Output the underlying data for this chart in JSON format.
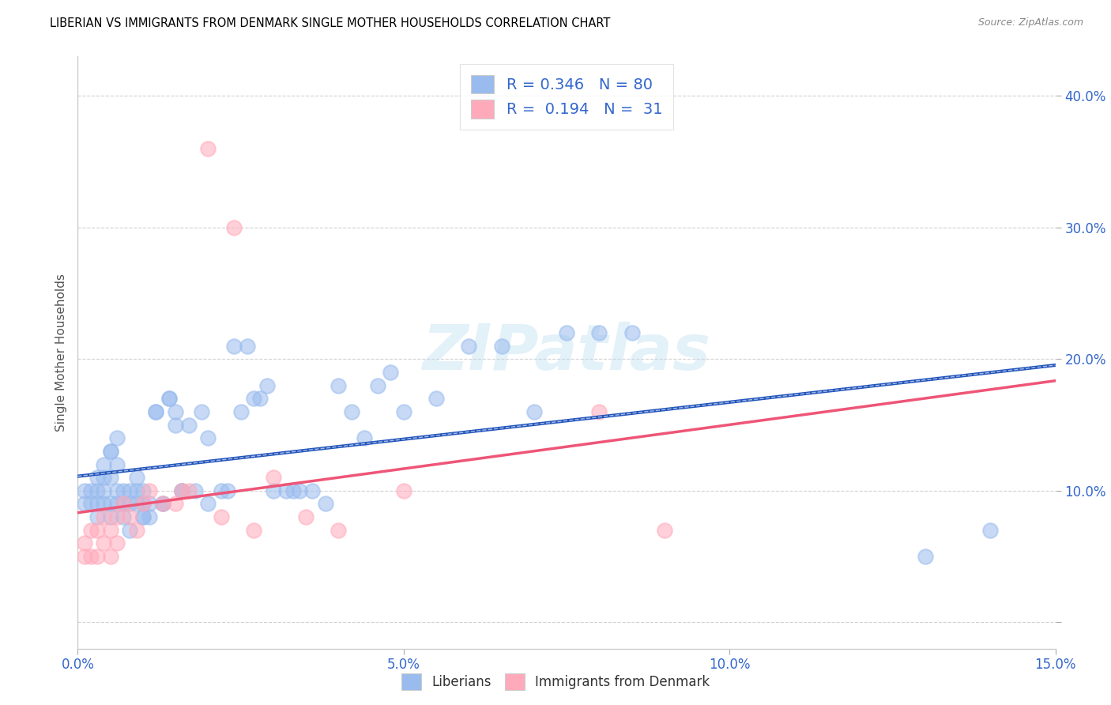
{
  "title": "LIBERIAN VS IMMIGRANTS FROM DENMARK SINGLE MOTHER HOUSEHOLDS CORRELATION CHART",
  "source": "Source: ZipAtlas.com",
  "ylabel": "Single Mother Households",
  "xlabel": "",
  "xlim": [
    0,
    0.15
  ],
  "ylim": [
    -0.02,
    0.43
  ],
  "xticks": [
    0.0,
    0.05,
    0.1,
    0.15
  ],
  "xticklabels": [
    "0.0%",
    "5.0%",
    "10.0%",
    "15.0%"
  ],
  "yticks": [
    0.0,
    0.1,
    0.2,
    0.3,
    0.4
  ],
  "yticklabels": [
    "",
    "10.0%",
    "20.0%",
    "30.0%",
    "40.0%"
  ],
  "blue_color": "#99BBEE",
  "pink_color": "#FFAABB",
  "blue_line_color": "#2255BB",
  "pink_line_color": "#EE5577",
  "R_blue": 0.346,
  "N_blue": 80,
  "R_pink": 0.194,
  "N_pink": 31,
  "legend_label_blue": "Liberians",
  "legend_label_pink": "Immigrants from Denmark",
  "watermark": "ZIPatlas",
  "blue_scatter_x": [
    0.001,
    0.001,
    0.002,
    0.002,
    0.003,
    0.003,
    0.003,
    0.003,
    0.004,
    0.004,
    0.004,
    0.004,
    0.005,
    0.005,
    0.005,
    0.005,
    0.005,
    0.006,
    0.006,
    0.006,
    0.006,
    0.007,
    0.007,
    0.007,
    0.008,
    0.008,
    0.008,
    0.009,
    0.009,
    0.009,
    0.01,
    0.01,
    0.01,
    0.01,
    0.011,
    0.011,
    0.012,
    0.012,
    0.013,
    0.013,
    0.014,
    0.014,
    0.015,
    0.015,
    0.016,
    0.016,
    0.017,
    0.018,
    0.019,
    0.02,
    0.02,
    0.022,
    0.023,
    0.024,
    0.025,
    0.026,
    0.027,
    0.028,
    0.029,
    0.03,
    0.032,
    0.033,
    0.034,
    0.036,
    0.038,
    0.04,
    0.042,
    0.044,
    0.046,
    0.048,
    0.05,
    0.055,
    0.06,
    0.065,
    0.07,
    0.075,
    0.08,
    0.085,
    0.13,
    0.14
  ],
  "blue_scatter_y": [
    0.1,
    0.09,
    0.1,
    0.09,
    0.1,
    0.08,
    0.09,
    0.11,
    0.09,
    0.1,
    0.11,
    0.12,
    0.13,
    0.13,
    0.08,
    0.09,
    0.11,
    0.09,
    0.1,
    0.12,
    0.14,
    0.09,
    0.1,
    0.08,
    0.09,
    0.07,
    0.1,
    0.1,
    0.09,
    0.11,
    0.1,
    0.08,
    0.09,
    0.08,
    0.09,
    0.08,
    0.16,
    0.16,
    0.09,
    0.09,
    0.17,
    0.17,
    0.15,
    0.16,
    0.1,
    0.1,
    0.15,
    0.1,
    0.16,
    0.09,
    0.14,
    0.1,
    0.1,
    0.21,
    0.16,
    0.21,
    0.17,
    0.17,
    0.18,
    0.1,
    0.1,
    0.1,
    0.1,
    0.1,
    0.09,
    0.18,
    0.16,
    0.14,
    0.18,
    0.19,
    0.16,
    0.17,
    0.21,
    0.21,
    0.16,
    0.22,
    0.22,
    0.22,
    0.05,
    0.07
  ],
  "pink_scatter_x": [
    0.001,
    0.001,
    0.002,
    0.002,
    0.003,
    0.003,
    0.004,
    0.004,
    0.005,
    0.005,
    0.006,
    0.006,
    0.007,
    0.008,
    0.009,
    0.01,
    0.011,
    0.013,
    0.015,
    0.016,
    0.017,
    0.02,
    0.022,
    0.024,
    0.027,
    0.03,
    0.035,
    0.04,
    0.05,
    0.08,
    0.09
  ],
  "pink_scatter_y": [
    0.06,
    0.05,
    0.07,
    0.05,
    0.07,
    0.05,
    0.08,
    0.06,
    0.07,
    0.05,
    0.08,
    0.06,
    0.09,
    0.08,
    0.07,
    0.09,
    0.1,
    0.09,
    0.09,
    0.1,
    0.1,
    0.36,
    0.08,
    0.3,
    0.07,
    0.11,
    0.08,
    0.07,
    0.1,
    0.16,
    0.07
  ]
}
